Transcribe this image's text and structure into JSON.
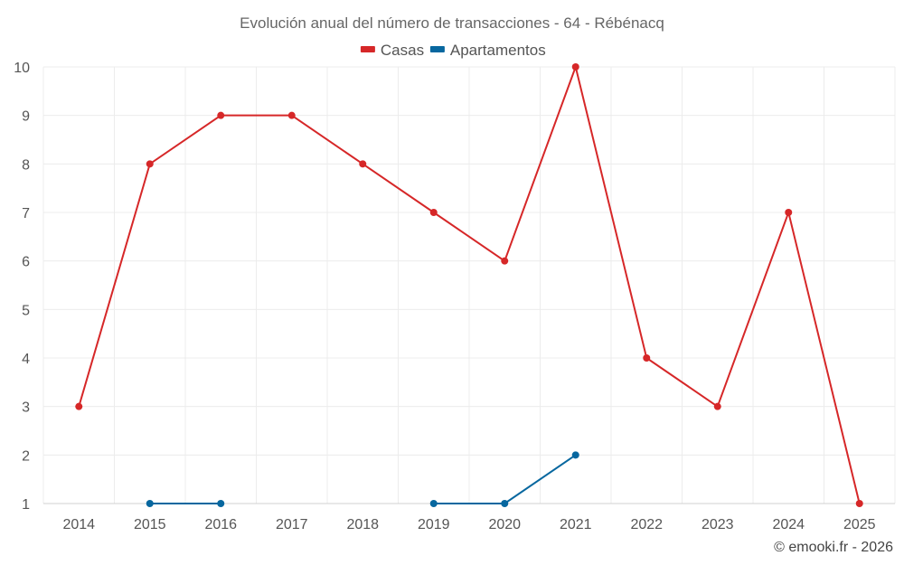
{
  "chart_data": {
    "type": "line",
    "title": "Evolución anual del número de transacciones - 64 - Rébénacq",
    "categories": [
      "2014",
      "2015",
      "2016",
      "2017",
      "2018",
      "2019",
      "2020",
      "2021",
      "2022",
      "2023",
      "2024",
      "2025"
    ],
    "ylim": [
      1,
      10
    ],
    "yticks": [
      1,
      2,
      3,
      4,
      5,
      6,
      7,
      8,
      9,
      10
    ],
    "grid": true,
    "legend_position": "top-center",
    "series": [
      {
        "name": "Casas",
        "color": "#d62728",
        "values": [
          3,
          8,
          9,
          9,
          8,
          7,
          6,
          10,
          4,
          3,
          7,
          1
        ]
      },
      {
        "name": "Apartamentos",
        "color": "#07679f",
        "values": [
          null,
          1,
          1,
          null,
          null,
          1,
          1,
          2,
          null,
          null,
          null,
          null
        ]
      }
    ],
    "credit": "© emooki.fr - 2026"
  }
}
